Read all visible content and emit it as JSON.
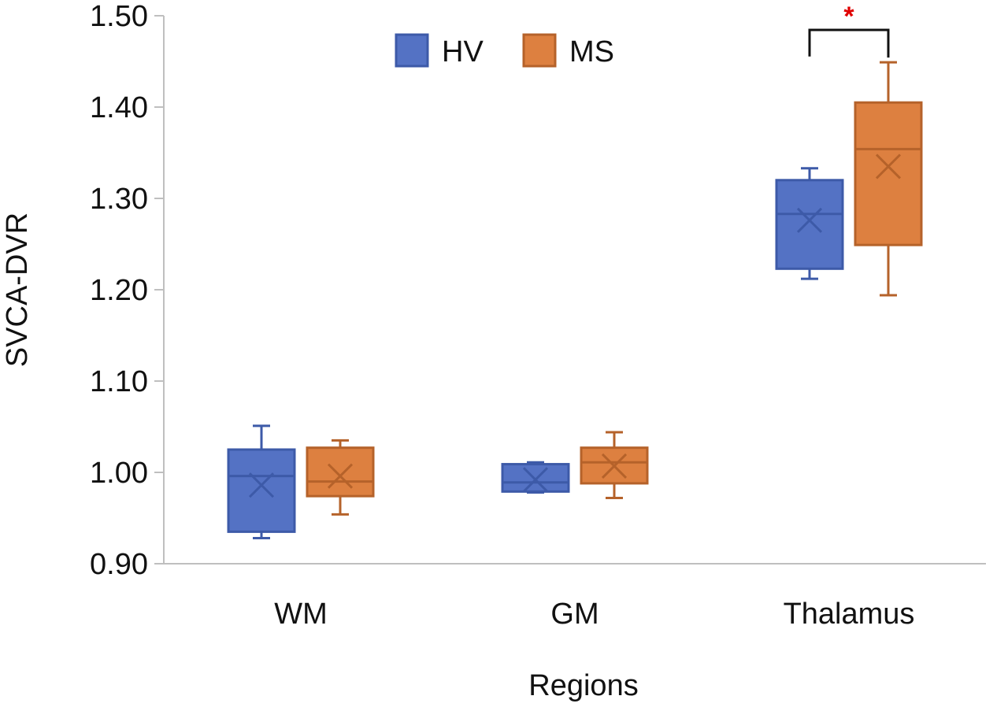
{
  "chart_data": {
    "type": "boxplot",
    "title": "",
    "xlabel": "Regions",
    "ylabel": "SVCA-DVR",
    "ylim": [
      0.9,
      1.5
    ],
    "yticks": [
      "0.90",
      "1.00",
      "1.10",
      "1.20",
      "1.30",
      "1.40",
      "1.50"
    ],
    "categories": [
      "WM",
      "GM",
      "Thalamus"
    ],
    "legend_position": "top-center",
    "colors": {
      "HV_fill": "#5472c4",
      "HV_stroke": "#3d5aa8",
      "MS_fill": "#dd8040",
      "MS_stroke": "#b5622a",
      "significance": "#e00000",
      "axis": "#bfbfbf"
    },
    "series": [
      {
        "name": "HV",
        "boxes": [
          {
            "min": 0.928,
            "q1": 0.935,
            "median": 0.996,
            "q3": 1.025,
            "max": 1.051,
            "mean": 0.986
          },
          {
            "min": 0.978,
            "q1": 0.979,
            "median": 0.989,
            "q3": 1.009,
            "max": 1.011,
            "mean": 0.992
          },
          {
            "min": 1.212,
            "q1": 1.223,
            "median": 1.283,
            "q3": 1.32,
            "max": 1.333,
            "mean": 1.276
          }
        ]
      },
      {
        "name": "MS",
        "boxes": [
          {
            "min": 0.954,
            "q1": 0.974,
            "median": 0.99,
            "q3": 1.027,
            "max": 1.035,
            "mean": 0.996
          },
          {
            "min": 0.972,
            "q1": 0.988,
            "median": 1.011,
            "q3": 1.027,
            "max": 1.044,
            "mean": 1.007
          },
          {
            "min": 1.194,
            "q1": 1.249,
            "median": 1.354,
            "q3": 1.405,
            "max": 1.449,
            "mean": 1.335
          }
        ]
      }
    ],
    "annotations": [
      {
        "category": "Thalamus",
        "text": "*"
      }
    ]
  }
}
